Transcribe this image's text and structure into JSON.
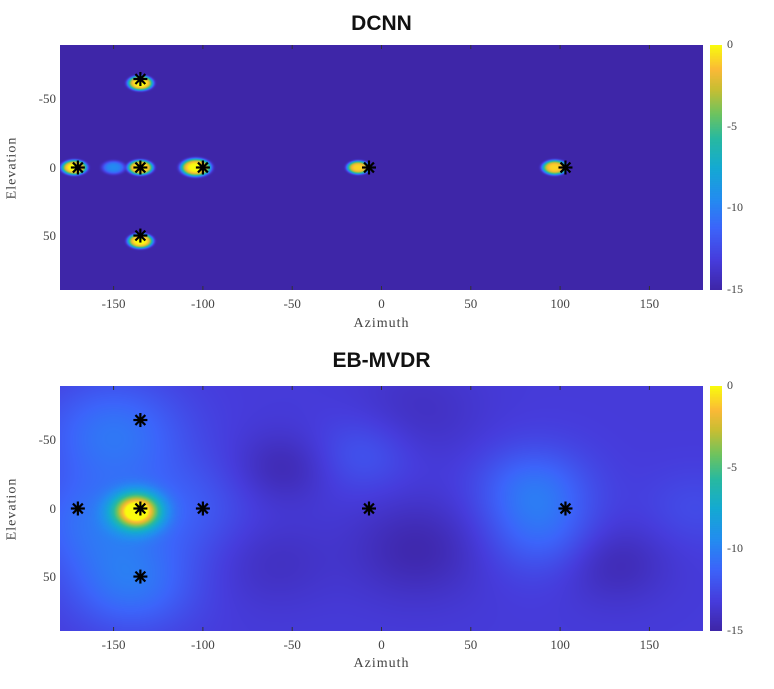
{
  "chart_data": [
    {
      "type": "heatmap",
      "title": "DCNN",
      "xlabel": "Azimuth",
      "ylabel": "Elevation",
      "xlim": [
        -180,
        180
      ],
      "ylim": [
        -90,
        90
      ],
      "y_reversed": true,
      "xticks": [
        -150,
        -100,
        -50,
        0,
        50,
        100,
        150
      ],
      "yticks": [
        -50,
        0,
        50
      ],
      "colorbar": {
        "range": [
          -15,
          0
        ],
        "ticks": [
          0,
          -5,
          -10,
          -15
        ],
        "colormap": "parula"
      },
      "background_value": -15,
      "peaks": [
        {
          "az": -172,
          "el": 0,
          "value": 0,
          "spread": 5
        },
        {
          "az": -135,
          "el": -62,
          "value": 0,
          "spread": 5
        },
        {
          "az": -135,
          "el": 0,
          "value": 0,
          "spread": 5
        },
        {
          "az": -150,
          "el": 0,
          "value": -11,
          "spread": 5
        },
        {
          "az": -135,
          "el": 54,
          "value": 0,
          "spread": 5
        },
        {
          "az": -104,
          "el": 0,
          "value": 0,
          "spread": 6
        },
        {
          "az": -13,
          "el": 0,
          "value": -1,
          "spread": 4.5
        },
        {
          "az": 97,
          "el": 0,
          "value": -1,
          "spread": 5
        }
      ],
      "markers": [
        {
          "az": -170,
          "el": 0
        },
        {
          "az": -135,
          "el": -65
        },
        {
          "az": -135,
          "el": 0
        },
        {
          "az": -135,
          "el": 50
        },
        {
          "az": -100,
          "el": 0
        },
        {
          "az": -7,
          "el": 0
        },
        {
          "az": 103,
          "el": 0
        }
      ]
    },
    {
      "type": "heatmap",
      "title": "EB-MVDR",
      "xlabel": "Azimuth",
      "ylabel": "Elevation",
      "xlim": [
        -180,
        180
      ],
      "ylim": [
        -90,
        90
      ],
      "y_reversed": true,
      "xticks": [
        -150,
        -100,
        -50,
        0,
        50,
        100,
        150
      ],
      "yticks": [
        -50,
        0,
        50
      ],
      "colorbar": {
        "range": [
          -15,
          0
        ],
        "ticks": [
          0,
          -5,
          -10,
          -15
        ],
        "colormap": "parula"
      },
      "background_value": -13.3,
      "bumps": [
        {
          "az": -137,
          "el": 2,
          "delta": 13.5,
          "spread": 9
        },
        {
          "az": -150,
          "el": -55,
          "delta": 2.8,
          "spread": 28
        },
        {
          "az": -140,
          "el": 55,
          "delta": 2.8,
          "spread": 25
        },
        {
          "az": -165,
          "el": 10,
          "delta": 2.2,
          "spread": 25
        },
        {
          "az": -110,
          "el": 0,
          "delta": 1.5,
          "spread": 25
        },
        {
          "az": 85,
          "el": -15,
          "delta": 2.5,
          "spread": 22
        },
        {
          "az": 90,
          "el": 20,
          "delta": 1.8,
          "spread": 22
        },
        {
          "az": -10,
          "el": -40,
          "delta": 1.3,
          "spread": 20
        },
        {
          "az": -55,
          "el": -30,
          "delta": -1.3,
          "spread": 18
        },
        {
          "az": -60,
          "el": 40,
          "delta": -0.8,
          "spread": 22
        },
        {
          "az": 20,
          "el": 30,
          "delta": -1.5,
          "spread": 25
        },
        {
          "az": 130,
          "el": 40,
          "delta": -1.3,
          "spread": 20
        },
        {
          "az": 20,
          "el": -70,
          "delta": -0.8,
          "spread": 25
        },
        {
          "az": 175,
          "el": 0,
          "delta": 0.8,
          "spread": 20
        }
      ],
      "markers": [
        {
          "az": -170,
          "el": 0
        },
        {
          "az": -135,
          "el": -65
        },
        {
          "az": -135,
          "el": 0
        },
        {
          "az": -135,
          "el": 50
        },
        {
          "az": -100,
          "el": 0
        },
        {
          "az": -7,
          "el": 0
        },
        {
          "az": 103,
          "el": 0
        }
      ]
    }
  ]
}
